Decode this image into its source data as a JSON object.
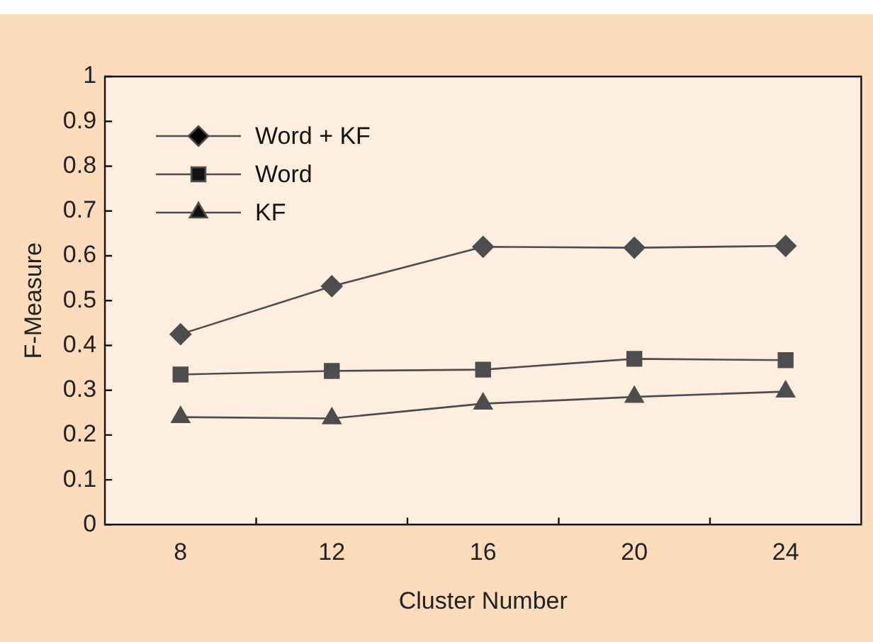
{
  "chart_data": {
    "type": "line",
    "xlabel": "Cluster Number",
    "ylabel": "F-Measure",
    "categories": [
      "8",
      "12",
      "16",
      "20",
      "24"
    ],
    "series": [
      {
        "name": "Word + KF",
        "color": "#4d4d4f",
        "marker": "diamond",
        "values": [
          0.425,
          0.532,
          0.62,
          0.618,
          0.622
        ]
      },
      {
        "name": "Word",
        "color": "#4d4d4f",
        "marker": "square",
        "values": [
          0.335,
          0.343,
          0.346,
          0.37,
          0.367
        ]
      },
      {
        "name": "KF",
        "color": "#4d4d4f",
        "marker": "triangle",
        "values": [
          0.24,
          0.237,
          0.27,
          0.285,
          0.297
        ]
      }
    ],
    "ylim": [
      0,
      1
    ],
    "yticks": [
      0,
      0.1,
      0.2,
      0.3,
      0.4,
      0.5,
      0.6,
      0.7,
      0.8,
      0.9,
      1
    ],
    "grid": false,
    "legend": "top left"
  }
}
